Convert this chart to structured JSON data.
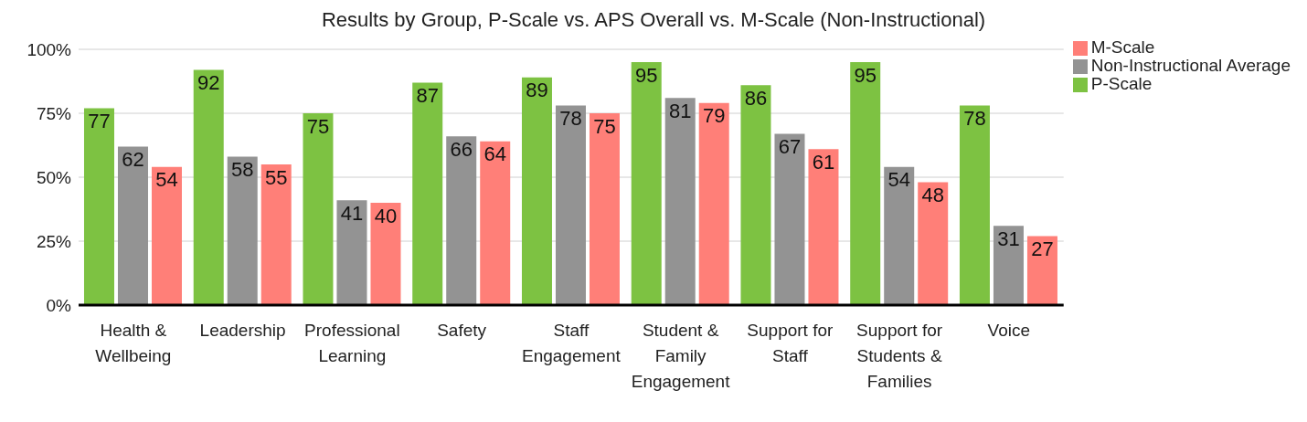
{
  "chart_data": {
    "type": "bar",
    "title": "Results by Group, P-Scale vs. APS Overall vs. M-Scale (Non-Instructional)",
    "categories": [
      "Health & Wellbeing",
      "Leadership",
      "Professional Learning",
      "Safety",
      "Staff Engagement",
      "Student & Family Engagement",
      "Support for Staff",
      "Support for Students & Families",
      "Voice"
    ],
    "series": [
      {
        "name": "P-Scale",
        "color": "#7dc242",
        "values": [
          77,
          92,
          75,
          87,
          89,
          95,
          86,
          95,
          78
        ]
      },
      {
        "name": "Non-Instructional Average",
        "color": "#939393",
        "values": [
          62,
          58,
          41,
          66,
          78,
          81,
          67,
          54,
          31
        ]
      },
      {
        "name": "M-Scale",
        "color": "#ff7f78",
        "values": [
          54,
          55,
          40,
          64,
          75,
          79,
          61,
          48,
          27
        ]
      }
    ],
    "ylim": [
      0,
      100
    ],
    "yticks": [
      {
        "value": 0,
        "label": "0%"
      },
      {
        "value": 25,
        "label": "25%"
      },
      {
        "value": 50,
        "label": "50%"
      },
      {
        "value": 75,
        "label": "75%"
      },
      {
        "value": 100,
        "label": "100%"
      }
    ],
    "grid": "y",
    "legend": "top right",
    "data_labels": true
  }
}
